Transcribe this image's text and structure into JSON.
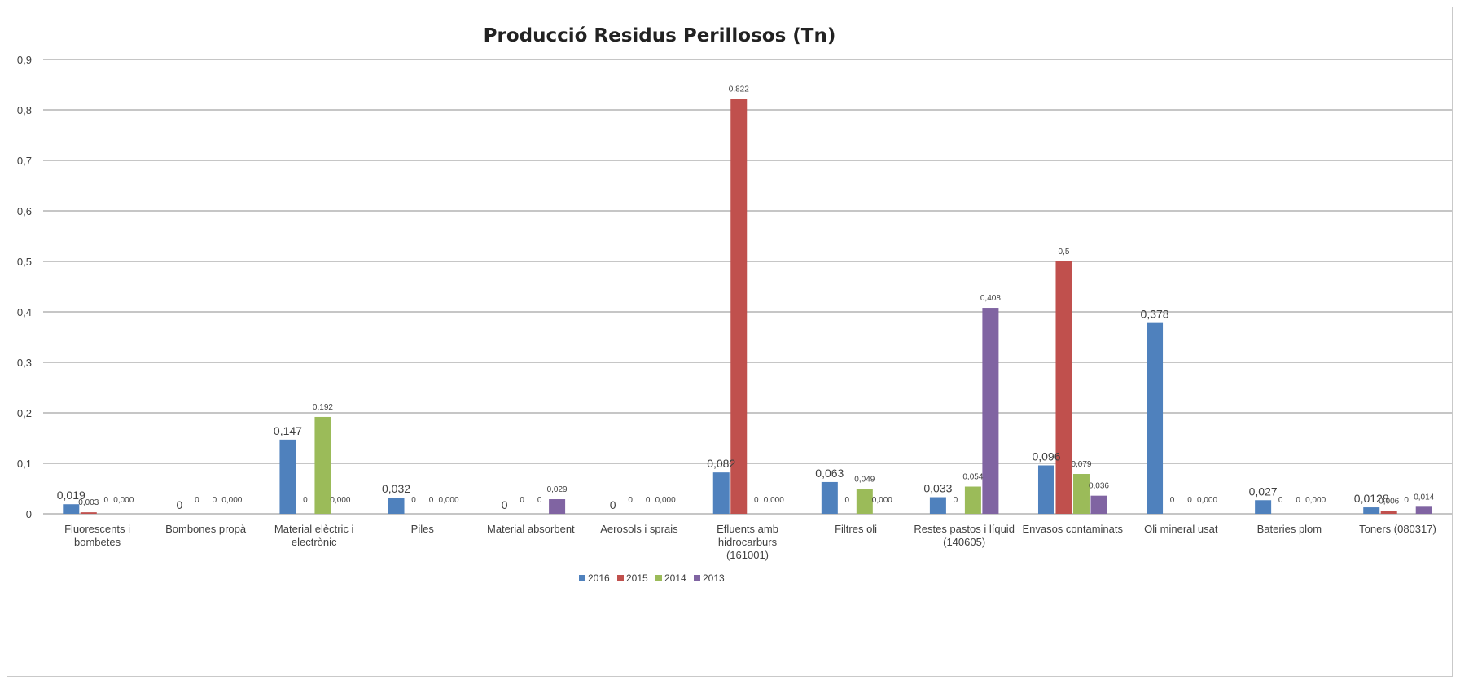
{
  "chart_data": {
    "type": "bar",
    "title": "Producció Residus Perillosos (Tn)",
    "xlabel": "",
    "ylabel": "",
    "ylim": [
      0,
      0.9
    ],
    "yticks": [
      "0",
      "0,1",
      "0,2",
      "0,3",
      "0,4",
      "0,5",
      "0,6",
      "0,7",
      "0,8",
      "0,9"
    ],
    "grid": true,
    "legend_position": "bottom",
    "categories": [
      [
        "Fluorescents i",
        "bombetes"
      ],
      [
        "Bombones propà"
      ],
      [
        "Material elèctric i",
        "electrònic"
      ],
      [
        "Piles"
      ],
      [
        "Material absorbent"
      ],
      [
        "Aerosols i sprais"
      ],
      [
        "Efluents amb",
        "hidrocarburs",
        "(161001)"
      ],
      [
        "Filtres oli"
      ],
      [
        "Restes pastos i líquid",
        "(140605)"
      ],
      [
        "Envasos contaminats"
      ],
      [
        "Oli mineral usat"
      ],
      [
        "Bateries plom"
      ],
      [
        "Toners (080317)"
      ]
    ],
    "series": [
      {
        "name": "2016",
        "color": "#4f81bd",
        "values": [
          0.019,
          0,
          0.147,
          0.032,
          0,
          0,
          0.082,
          0.063,
          0.033,
          0.096,
          0.378,
          0.027,
          0.0128
        ],
        "labels": [
          "0,019",
          "0",
          "0,147",
          "0,032",
          "0",
          "0",
          "0,082",
          "0,063",
          "0,033",
          "0,096",
          "0,378",
          "0,027",
          "0,0128"
        ]
      },
      {
        "name": "2015",
        "color": "#c0504d",
        "values": [
          0.003,
          0,
          0,
          0,
          0,
          0,
          0.822,
          0,
          0,
          0.5,
          0,
          0,
          0.006
        ],
        "labels": [
          "0,003",
          "0",
          "0",
          "0",
          "0",
          "0",
          "0,822",
          "0",
          "0",
          "0,5",
          "0",
          "0",
          "0,006"
        ]
      },
      {
        "name": "2014",
        "color": "#9bbb59",
        "values": [
          0,
          0,
          0.192,
          0,
          0,
          0,
          0,
          0.049,
          0.054,
          0.079,
          0,
          0,
          0
        ],
        "labels": [
          "0",
          "0",
          "0,192",
          "0",
          "0",
          "0",
          "0",
          "0,049",
          "0,054",
          "0,079",
          "0",
          "0",
          "0"
        ]
      },
      {
        "name": "2013",
        "color": "#8064a2",
        "values": [
          0,
          0,
          0,
          0,
          0.029,
          0,
          0,
          0,
          0.408,
          0.036,
          0,
          0,
          0.014
        ],
        "labels": [
          "0,000",
          "0,000",
          "0,000",
          "0,000",
          "0,029",
          "0,000",
          "0,000",
          "0,000",
          "0,408",
          "0,036",
          "0,000",
          "0,000",
          "0,014"
        ]
      }
    ]
  }
}
